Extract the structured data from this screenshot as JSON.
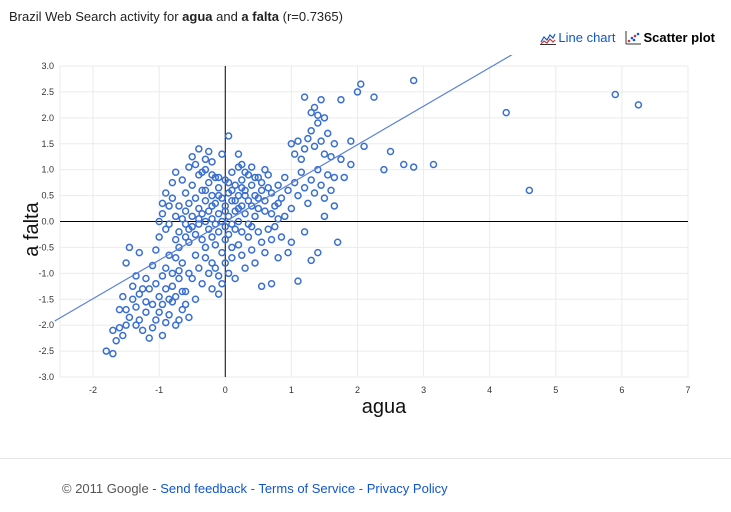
{
  "header": {
    "title_prefix": "Brazil Web Search activity for ",
    "term_a": "agua",
    "and_word": " and ",
    "term_b": "a falta",
    "corr": " (r=0.7365)"
  },
  "view_toggle": {
    "line_label": "Line chart",
    "scatter_label": "Scatter plot",
    "active": "scatter"
  },
  "colors": {
    "point": "#3a6fd0",
    "trend": "#5b82d6",
    "axis": "#000000",
    "grid": "#ebebeb"
  },
  "footer": {
    "copyright": "© 2011 Google",
    "sep": " - ",
    "links": [
      "Send feedback",
      "Terms of Service",
      "Privacy Policy"
    ]
  },
  "chart_data": {
    "type": "scatter",
    "xlabel": "agua",
    "ylabel": "a falta",
    "xlim": [
      -2.5,
      7
    ],
    "ylim": [
      -3.0,
      3.0
    ],
    "xticks": [
      -2,
      -1,
      0,
      1,
      2,
      3,
      4,
      5,
      6,
      7
    ],
    "yticks": [
      "-3.0",
      "-2.5",
      "-2.0",
      "-1.5",
      "-1.0",
      "-0.5",
      "0.0",
      "0.5",
      "1.0",
      "1.5",
      "2.0",
      "2.5",
      "3.0"
    ],
    "grid": true,
    "trendline": {
      "x": [
        -2.58,
        4.38
      ],
      "y": [
        -1.92,
        3.25
      ]
    },
    "points": [
      [
        -1.8,
        -2.5
      ],
      [
        -1.7,
        -2.55
      ],
      [
        -1.65,
        -2.3
      ],
      [
        -1.7,
        -2.1
      ],
      [
        -1.6,
        -2.05
      ],
      [
        -1.55,
        -2.2
      ],
      [
        -1.5,
        -2.0
      ],
      [
        -1.45,
        -1.85
      ],
      [
        -1.5,
        -1.7
      ],
      [
        -1.4,
        -1.5
      ],
      [
        -1.35,
        -1.65
      ],
      [
        -1.3,
        -1.9
      ],
      [
        -1.3,
        -1.4
      ],
      [
        -1.25,
        -2.1
      ],
      [
        -1.2,
        -1.75
      ],
      [
        -1.2,
        -1.55
      ],
      [
        -1.15,
        -1.3
      ],
      [
        -1.15,
        -2.25
      ],
      [
        -1.1,
        -1.6
      ],
      [
        -1.05,
        -1.2
      ],
      [
        -1.05,
        -1.9
      ],
      [
        -1.0,
        -1.45
      ],
      [
        -1.0,
        -1.75
      ],
      [
        -0.95,
        -1.05
      ],
      [
        -0.95,
        -1.6
      ],
      [
        -0.9,
        -1.3
      ],
      [
        -0.9,
        -0.9
      ],
      [
        -0.85,
        -1.5
      ],
      [
        -0.85,
        -1.8
      ],
      [
        -0.8,
        -1.0
      ],
      [
        -0.8,
        -1.25
      ],
      [
        -0.75,
        -0.7
      ],
      [
        -0.75,
        -1.45
      ],
      [
        -0.7,
        -1.1
      ],
      [
        -0.7,
        -0.5
      ],
      [
        -0.7,
        -1.9
      ],
      [
        -0.65,
        -0.8
      ],
      [
        -0.65,
        -1.35
      ],
      [
        -0.6,
        -0.3
      ],
      [
        -0.6,
        -1.6
      ],
      [
        -0.55,
        -1.0
      ],
      [
        -0.55,
        -0.15
      ],
      [
        -1.45,
        -0.5
      ],
      [
        -1.5,
        -0.8
      ],
      [
        -1.35,
        -1.05
      ],
      [
        -1.3,
        -0.6
      ],
      [
        -1.1,
        -0.85
      ],
      [
        -1.05,
        -0.55
      ],
      [
        -1.0,
        -0.3
      ],
      [
        -0.95,
        0.15
      ],
      [
        -0.9,
        -0.15
      ],
      [
        -0.85,
        -0.05
      ],
      [
        -0.85,
        0.3
      ],
      [
        -0.8,
        0.45
      ],
      [
        -0.75,
        0.1
      ],
      [
        -0.7,
        0.3
      ],
      [
        -0.7,
        -0.2
      ],
      [
        -0.65,
        0.05
      ],
      [
        -0.6,
        0.55
      ],
      [
        -0.6,
        0.2
      ],
      [
        -0.55,
        -0.4
      ],
      [
        -0.55,
        0.35
      ],
      [
        -0.5,
        0.7
      ],
      [
        -0.5,
        -0.1
      ],
      [
        -0.5,
        0.1
      ],
      [
        -0.45,
        0.45
      ],
      [
        -0.45,
        -0.25
      ],
      [
        -0.45,
        -0.65
      ],
      [
        -0.4,
        0.9
      ],
      [
        -0.4,
        0.25
      ],
      [
        -0.4,
        -0.05
      ],
      [
        -0.35,
        0.6
      ],
      [
        -0.35,
        -0.35
      ],
      [
        -0.35,
        0.15
      ],
      [
        -0.3,
        1.0
      ],
      [
        -0.3,
        0.4
      ],
      [
        -0.3,
        0.0
      ],
      [
        -0.3,
        -0.5
      ],
      [
        -0.25,
        0.75
      ],
      [
        -0.25,
        0.2
      ],
      [
        -0.25,
        -0.15
      ],
      [
        -0.2,
        1.15
      ],
      [
        -0.2,
        0.5
      ],
      [
        -0.2,
        0.05
      ],
      [
        -0.2,
        -0.3
      ],
      [
        -0.2,
        -0.8
      ],
      [
        -0.15,
        0.85
      ],
      [
        -0.15,
        0.35
      ],
      [
        -0.15,
        -0.05
      ],
      [
        -0.15,
        -0.45
      ],
      [
        -0.1,
        0.65
      ],
      [
        -0.1,
        0.15
      ],
      [
        -0.1,
        -0.2
      ],
      [
        -0.1,
        -1.05
      ],
      [
        -0.05,
        1.3
      ],
      [
        -0.05,
        0.45
      ],
      [
        -0.05,
        0.0
      ],
      [
        -0.05,
        -0.6
      ],
      [
        0.0,
        0.8
      ],
      [
        0.0,
        0.3
      ],
      [
        0.0,
        -0.1
      ],
      [
        0.0,
        -0.35
      ],
      [
        0.05,
        1.65
      ],
      [
        0.05,
        0.55
      ],
      [
        0.05,
        0.1
      ],
      [
        0.05,
        -0.25
      ],
      [
        0.1,
        0.95
      ],
      [
        0.1,
        0.4
      ],
      [
        0.1,
        -0.05
      ],
      [
        0.1,
        -0.5
      ],
      [
        0.15,
        0.7
      ],
      [
        0.15,
        0.2
      ],
      [
        0.15,
        -0.15
      ],
      [
        0.2,
        1.05
      ],
      [
        0.2,
        0.5
      ],
      [
        0.2,
        0.0
      ],
      [
        0.25,
        0.8
      ],
      [
        0.25,
        0.3
      ],
      [
        0.25,
        -0.2
      ],
      [
        0.3,
        0.6
      ],
      [
        0.3,
        0.15
      ],
      [
        0.35,
        0.9
      ],
      [
        0.35,
        0.4
      ],
      [
        0.4,
        0.7
      ],
      [
        0.4,
        -0.1
      ],
      [
        0.45,
        0.5
      ],
      [
        0.5,
        0.85
      ],
      [
        0.5,
        0.25
      ],
      [
        0.55,
        0.6
      ],
      [
        0.6,
        1.0
      ],
      [
        -0.9,
        0.55
      ],
      [
        -0.95,
        0.35
      ],
      [
        -1.0,
        0.0
      ],
      [
        -0.8,
        0.75
      ],
      [
        -0.75,
        0.95
      ],
      [
        -0.65,
        0.8
      ],
      [
        -0.55,
        1.05
      ],
      [
        -0.5,
        1.25
      ],
      [
        -0.45,
        1.1
      ],
      [
        -0.4,
        1.4
      ],
      [
        -0.35,
        0.95
      ],
      [
        -0.3,
        1.2
      ],
      [
        -0.25,
        1.35
      ],
      [
        -0.2,
        0.9
      ],
      [
        -0.4,
        -0.9
      ],
      [
        -0.35,
        -1.2
      ],
      [
        -0.3,
        -0.7
      ],
      [
        -0.25,
        -1.0
      ],
      [
        -0.2,
        -1.3
      ],
      [
        -0.15,
        -0.9
      ],
      [
        -0.1,
        -1.4
      ],
      [
        -0.05,
        -1.2
      ],
      [
        0.0,
        -0.8
      ],
      [
        0.05,
        -1.0
      ],
      [
        0.1,
        -0.7
      ],
      [
        -0.5,
        -1.1
      ],
      [
        -0.6,
        -1.35
      ],
      [
        -0.45,
        -1.5
      ],
      [
        -0.7,
        -0.95
      ],
      [
        -0.8,
        -1.55
      ],
      [
        -0.65,
        -1.7
      ],
      [
        -0.75,
        -2.0
      ],
      [
        -0.9,
        -1.95
      ],
      [
        -0.55,
        -1.85
      ],
      [
        0.15,
        -1.1
      ],
      [
        0.2,
        -0.45
      ],
      [
        0.25,
        -0.65
      ],
      [
        0.3,
        -0.9
      ],
      [
        0.35,
        -0.3
      ],
      [
        0.4,
        -0.55
      ],
      [
        0.45,
        -0.8
      ],
      [
        0.5,
        -0.2
      ],
      [
        0.55,
        -0.4
      ],
      [
        0.6,
        -0.6
      ],
      [
        0.65,
        -0.15
      ],
      [
        0.7,
        -0.35
      ],
      [
        0.75,
        -0.1
      ],
      [
        0.8,
        0.05
      ],
      [
        0.2,
        1.3
      ],
      [
        0.25,
        1.1
      ],
      [
        0.3,
        0.95
      ],
      [
        0.4,
        1.05
      ],
      [
        0.45,
        0.85
      ],
      [
        0.55,
        0.75
      ],
      [
        0.6,
        0.4
      ],
      [
        0.65,
        0.9
      ],
      [
        0.7,
        0.55
      ],
      [
        0.75,
        0.3
      ],
      [
        0.8,
        0.7
      ],
      [
        0.85,
        0.45
      ],
      [
        0.9,
        0.85
      ],
      [
        0.95,
        0.6
      ],
      [
        1.0,
        0.25
      ],
      [
        1.05,
        0.75
      ],
      [
        1.1,
        0.5
      ],
      [
        1.15,
        0.95
      ],
      [
        1.2,
        0.65
      ],
      [
        1.25,
        0.35
      ],
      [
        1.3,
        0.8
      ],
      [
        1.35,
        0.55
      ],
      [
        1.4,
        1.0
      ],
      [
        1.45,
        0.7
      ],
      [
        1.5,
        0.45
      ],
      [
        1.55,
        0.9
      ],
      [
        1.6,
        0.6
      ],
      [
        1.65,
        0.85
      ],
      [
        1.0,
        1.5
      ],
      [
        1.05,
        1.3
      ],
      [
        1.1,
        1.55
      ],
      [
        1.15,
        1.2
      ],
      [
        1.2,
        1.4
      ],
      [
        1.25,
        1.6
      ],
      [
        1.3,
        1.75
      ],
      [
        1.35,
        1.45
      ],
      [
        1.4,
        1.9
      ],
      [
        1.45,
        1.55
      ],
      [
        1.5,
        1.3
      ],
      [
        1.55,
        1.7
      ],
      [
        1.6,
        1.25
      ],
      [
        1.65,
        1.5
      ],
      [
        1.3,
        2.1
      ],
      [
        1.35,
        2.2
      ],
      [
        1.4,
        2.05
      ],
      [
        1.45,
        2.35
      ],
      [
        1.5,
        2.0
      ],
      [
        1.75,
        2.35
      ],
      [
        1.2,
        2.4
      ],
      [
        2.0,
        2.5
      ],
      [
        2.05,
        2.65
      ],
      [
        2.25,
        2.4
      ],
      [
        2.85,
        2.72
      ],
      [
        1.9,
        1.55
      ],
      [
        1.75,
        1.2
      ],
      [
        1.8,
        0.85
      ],
      [
        1.9,
        1.1
      ],
      [
        2.1,
        1.45
      ],
      [
        2.5,
        1.35
      ],
      [
        2.4,
        1.0
      ],
      [
        2.7,
        1.1
      ],
      [
        2.85,
        1.05
      ],
      [
        3.15,
        1.1
      ],
      [
        4.25,
        2.1
      ],
      [
        4.6,
        0.6
      ],
      [
        5.9,
        2.45
      ],
      [
        6.25,
        2.25
      ],
      [
        1.65,
        0.3
      ],
      [
        1.5,
        0.1
      ],
      [
        1.7,
        -0.4
      ],
      [
        1.4,
        -0.6
      ],
      [
        1.3,
        -0.75
      ],
      [
        1.0,
        -0.4
      ],
      [
        0.8,
        -0.7
      ],
      [
        0.7,
        -1.2
      ],
      [
        0.55,
        -1.25
      ],
      [
        0.95,
        -0.6
      ],
      [
        1.1,
        -1.15
      ],
      [
        0.85,
        -0.3
      ],
      [
        1.2,
        -0.2
      ],
      [
        0.9,
        0.1
      ],
      [
        0.6,
        0.2
      ],
      [
        0.3,
        0.5
      ],
      [
        0.1,
        0.6
      ],
      [
        -0.1,
        0.5
      ],
      [
        0.0,
        0.2
      ],
      [
        0.2,
        0.25
      ],
      [
        -0.2,
        0.3
      ],
      [
        0.45,
        0.1
      ],
      [
        0.35,
        -0.05
      ],
      [
        0.5,
        0.45
      ],
      [
        0.7,
        0.15
      ],
      [
        0.8,
        0.35
      ],
      [
        0.65,
        0.65
      ],
      [
        0.4,
        0.3
      ],
      [
        0.15,
        0.4
      ],
      [
        -0.3,
        0.6
      ],
      [
        -0.1,
        0.85
      ],
      [
        0.05,
        0.75
      ],
      [
        0.25,
        0.65
      ],
      [
        -0.4,
        0.05
      ],
      [
        -0.6,
        -0.05
      ],
      [
        -0.75,
        -0.35
      ],
      [
        -0.85,
        -0.65
      ],
      [
        -1.2,
        -1.1
      ],
      [
        -1.25,
        -1.3
      ],
      [
        -1.4,
        -1.25
      ],
      [
        -1.55,
        -1.45
      ],
      [
        -1.6,
        -1.7
      ],
      [
        -1.35,
        -2.0
      ],
      [
        -1.1,
        -2.05
      ],
      [
        -0.95,
        -2.2
      ]
    ]
  }
}
